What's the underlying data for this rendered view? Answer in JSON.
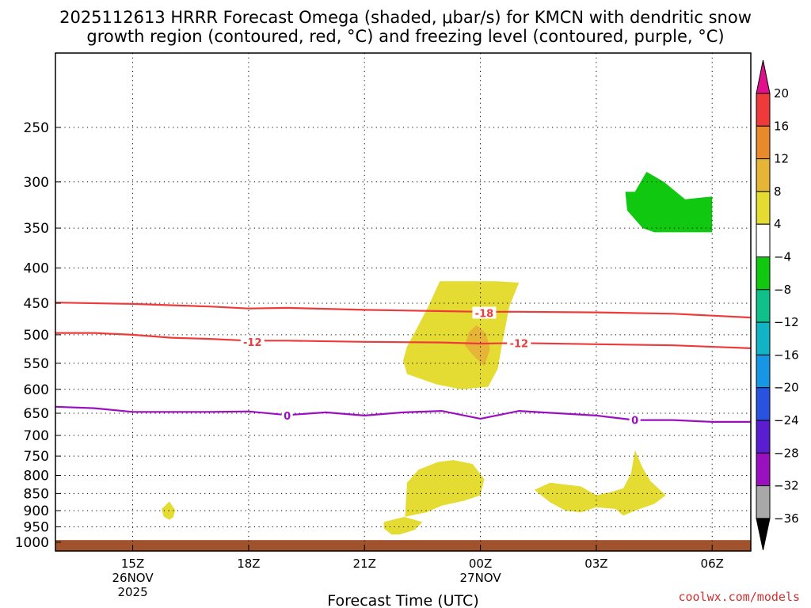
{
  "title_line1": "2025112613 HRRR Forecast Omega (shaded, μbar/s) for KMCN with dendritic snow",
  "title_line2": "growth region (contoured, red, °C) and freezing level (contoured, purple, °C)",
  "credit": "coolwx.com/models",
  "chart_data": {
    "type": "time-height cross section",
    "xlabel": "Forecast Time (UTC)",
    "ylabel": "",
    "x_unit": "hours since 13Z 26NOV2025",
    "xlim": [
      0,
      18
    ],
    "ylim_hpa": [
      1030,
      195
    ],
    "y_scale": "log",
    "grid": true,
    "x_ticks": [
      {
        "hour": 2,
        "label": "15Z",
        "sub1": "26NOV",
        "sub2": "2025"
      },
      {
        "hour": 5,
        "label": "18Z",
        "sub1": "",
        "sub2": ""
      },
      {
        "hour": 8,
        "label": "21Z",
        "sub1": "",
        "sub2": ""
      },
      {
        "hour": 11,
        "label": "00Z",
        "sub1": "27NOV",
        "sub2": ""
      },
      {
        "hour": 14,
        "label": "03Z",
        "sub1": "",
        "sub2": ""
      },
      {
        "hour": 17,
        "label": "06Z",
        "sub1": "",
        "sub2": ""
      }
    ],
    "y_ticks": [
      {
        "p": 250,
        "label": "250",
        "grid": true
      },
      {
        "p": 300,
        "label": "300",
        "grid": true
      },
      {
        "p": 350,
        "label": "350",
        "grid": true
      },
      {
        "p": 400,
        "label": "400",
        "grid": true
      },
      {
        "p": 450,
        "label": "450",
        "grid": true
      },
      {
        "p": 500,
        "label": "500",
        "grid": true
      },
      {
        "p": 550,
        "label": "550",
        "grid": true
      },
      {
        "p": 600,
        "label": "600",
        "grid": true
      },
      {
        "p": 650,
        "label": "650",
        "grid": true
      },
      {
        "p": 700,
        "label": "700",
        "grid": true
      },
      {
        "p": 750,
        "label": "750",
        "grid": true
      },
      {
        "p": 800,
        "label": "800",
        "grid": true
      },
      {
        "p": 850,
        "label": "850",
        "grid": true
      },
      {
        "p": 900,
        "label": "900",
        "grid": true
      },
      {
        "p": 950,
        "label": "950",
        "grid": true
      },
      {
        "p": 1000,
        "label": "1000",
        "grid": false
      }
    ],
    "colorbar": {
      "ticks": [
        "20",
        "16",
        "12",
        "8",
        "4",
        "−4",
        "−8",
        "−12",
        "−16",
        "−20",
        "−24",
        "−28",
        "−32",
        "−36"
      ],
      "top_arrow_color": "#e0108c",
      "bottom_arrow_color": "#000000",
      "bins": [
        {
          "from": 20,
          "to": 16,
          "color": "#ee3a3a"
        },
        {
          "from": 16,
          "to": 12,
          "color": "#e88a2c"
        },
        {
          "from": 12,
          "to": 8,
          "color": "#e6b436"
        },
        {
          "from": 8,
          "to": 4,
          "color": "#e4dc32"
        },
        {
          "from": 4,
          "to": -4,
          "color": "#ffffff"
        },
        {
          "from": -4,
          "to": -8,
          "color": "#10c810"
        },
        {
          "from": -8,
          "to": -12,
          "color": "#10c08a"
        },
        {
          "from": -12,
          "to": -16,
          "color": "#10b4c4"
        },
        {
          "from": -16,
          "to": -20,
          "color": "#1896e6"
        },
        {
          "from": -20,
          "to": -24,
          "color": "#2a52e0"
        },
        {
          "from": -24,
          "to": -28,
          "color": "#5a1ed0"
        },
        {
          "from": -28,
          "to": -32,
          "color": "#9a10c0"
        },
        {
          "from": -32,
          "to": -36,
          "color": "#a8a8a8"
        }
      ]
    },
    "shaded_regions": [
      {
        "value_bin": "4 to 8",
        "color": "#e4dc32",
        "points": [
          [
            9.95,
            418
          ],
          [
            10.0,
            418
          ],
          [
            11.4,
            418
          ],
          [
            12.0,
            420
          ],
          [
            11.75,
            455
          ],
          [
            11.55,
            520
          ],
          [
            11.45,
            560
          ],
          [
            11.2,
            595
          ],
          [
            10.5,
            600
          ],
          [
            9.85,
            590
          ],
          [
            9.1,
            570
          ],
          [
            9.0,
            545
          ],
          [
            9.1,
            520
          ],
          [
            9.35,
            490
          ],
          [
            9.65,
            455
          ],
          [
            9.95,
            418
          ]
        ]
      },
      {
        "value_bin": "8 to 12",
        "color": "#e6b436",
        "points": [
          [
            10.9,
            484
          ],
          [
            11.15,
            498
          ],
          [
            11.25,
            525
          ],
          [
            11.1,
            555
          ],
          [
            10.8,
            535
          ],
          [
            10.6,
            518
          ],
          [
            10.7,
            496
          ],
          [
            10.9,
            484
          ]
        ]
      },
      {
        "value_bin": "4 to 8",
        "color": "#e4dc32",
        "points": [
          [
            9.1,
            820
          ],
          [
            9.4,
            785
          ],
          [
            9.9,
            765
          ],
          [
            10.3,
            760
          ],
          [
            10.8,
            770
          ],
          [
            11.1,
            810
          ],
          [
            11.0,
            855
          ],
          [
            10.6,
            870
          ],
          [
            10.0,
            885
          ],
          [
            9.6,
            905
          ],
          [
            9.0,
            920
          ],
          [
            8.5,
            935
          ],
          [
            8.5,
            955
          ],
          [
            8.7,
            975
          ],
          [
            8.9,
            975
          ],
          [
            9.3,
            960
          ],
          [
            9.5,
            935
          ],
          [
            9.05,
            920
          ],
          [
            9.1,
            820
          ]
        ]
      },
      {
        "value_bin": "4 to 8",
        "color": "#e4dc32",
        "points": [
          [
            12.4,
            840
          ],
          [
            12.8,
            820
          ],
          [
            13.6,
            830
          ],
          [
            14.0,
            855
          ],
          [
            14.4,
            845
          ],
          [
            14.7,
            835
          ],
          [
            14.9,
            795
          ],
          [
            15.0,
            735
          ],
          [
            15.2,
            780
          ],
          [
            15.4,
            815
          ],
          [
            15.8,
            855
          ],
          [
            15.5,
            880
          ],
          [
            15.0,
            900
          ],
          [
            14.7,
            915
          ],
          [
            14.5,
            895
          ],
          [
            14.0,
            890
          ],
          [
            13.6,
            905
          ],
          [
            13.2,
            900
          ],
          [
            12.8,
            875
          ],
          [
            12.4,
            840
          ]
        ]
      },
      {
        "value_bin": "4 to 8",
        "color": "#e4dc32",
        "points": [
          [
            2.95,
            873
          ],
          [
            3.1,
            898
          ],
          [
            3.05,
            920
          ],
          [
            2.95,
            928
          ],
          [
            2.8,
            918
          ],
          [
            2.75,
            895
          ],
          [
            2.95,
            873
          ]
        ]
      },
      {
        "value_bin": "-4 to -8",
        "color": "#10c810",
        "points": [
          [
            15.0,
            310
          ],
          [
            15.3,
            290
          ],
          [
            15.75,
            300
          ],
          [
            16.3,
            318
          ],
          [
            17.0,
            315
          ],
          [
            17.0,
            355
          ],
          [
            15.5,
            355
          ],
          [
            15.2,
            350
          ],
          [
            14.8,
            330
          ],
          [
            14.75,
            310
          ],
          [
            15.0,
            310
          ]
        ]
      }
    ],
    "temperature_contours": [
      {
        "value": "-18",
        "color": "#ee3a3a",
        "label_at": [
          11.1,
          465
        ],
        "points": [
          [
            0,
            449
          ],
          [
            2,
            451
          ],
          [
            4,
            455
          ],
          [
            5,
            458
          ],
          [
            6,
            457
          ],
          [
            8,
            460
          ],
          [
            10,
            462
          ],
          [
            11,
            463
          ],
          [
            12,
            463
          ],
          [
            14,
            464
          ],
          [
            16,
            466
          ],
          [
            18,
            472
          ]
        ]
      },
      {
        "value": "-12",
        "color": "#ee3a3a",
        "label_at": [
          5.1,
          512
        ],
        "points": [
          [
            0,
            497
          ],
          [
            1,
            497
          ],
          [
            2,
            500
          ],
          [
            3,
            505
          ],
          [
            4,
            507
          ],
          [
            5,
            510
          ],
          [
            6,
            510
          ],
          [
            8,
            512
          ],
          [
            10,
            513
          ],
          [
            11,
            515
          ],
          [
            12,
            514
          ],
          [
            14,
            516
          ],
          [
            16,
            518
          ],
          [
            18,
            523
          ]
        ]
      },
      {
        "value": "-12",
        "color": "#ee3a3a",
        "label_at": [
          12.0,
          514
        ],
        "points": []
      },
      {
        "value": "0",
        "color": "#9a10c0",
        "label_at": [
          6.0,
          655
        ],
        "points": [
          [
            0,
            636
          ],
          [
            1,
            639
          ],
          [
            2,
            647
          ],
          [
            4,
            647
          ],
          [
            5,
            646
          ],
          [
            6,
            654
          ],
          [
            7,
            648
          ],
          [
            8,
            655
          ],
          [
            9,
            648
          ],
          [
            10,
            645
          ],
          [
            11,
            662
          ],
          [
            12,
            645
          ],
          [
            13,
            650
          ],
          [
            14,
            655
          ],
          [
            15,
            665
          ],
          [
            16,
            665
          ],
          [
            17,
            669
          ],
          [
            18,
            669
          ]
        ]
      },
      {
        "value": "0",
        "color": "#9a10c0",
        "label_at": [
          15.0,
          665
        ],
        "points": []
      }
    ],
    "ground": {
      "p_top": 993,
      "color": "#a0522d"
    }
  }
}
